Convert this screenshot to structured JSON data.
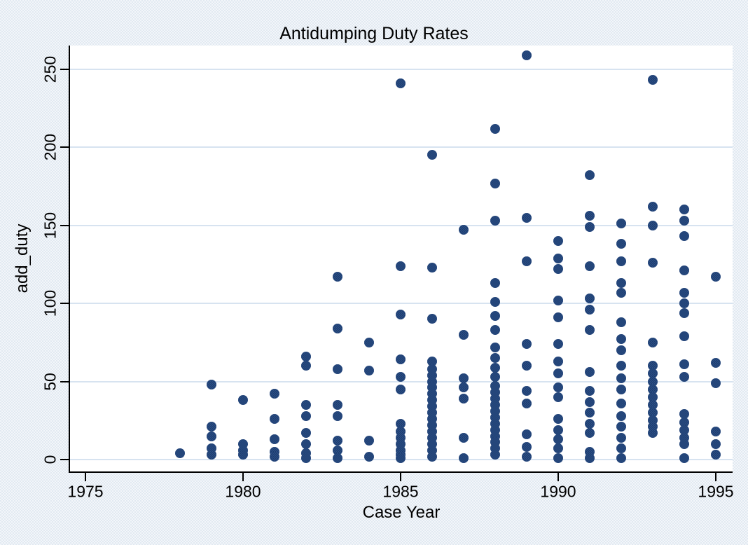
{
  "title": "Antidumping Duty Rates",
  "x_axis": {
    "label": "Case Year",
    "ticks": [
      1975,
      1980,
      1985,
      1990,
      1995
    ]
  },
  "y_axis": {
    "label": "add_duty",
    "ticks": [
      0,
      50,
      100,
      150,
      200,
      250
    ]
  },
  "colors": {
    "marker": "#24457a",
    "outer_background": "#eaf0f6",
    "plot_background": "#ffffff",
    "gridline": "#d7e3f0",
    "axis": "#000000"
  },
  "chart_data": {
    "type": "scatter",
    "title": "Antidumping Duty Rates",
    "xlabel": "Case Year",
    "ylabel": "add_duty",
    "xlim": [
      1974.5,
      1995.55
    ],
    "ylim": [
      0,
      262
    ],
    "grid": true,
    "legend": "none",
    "marker_shape": "filled-circle",
    "points": [
      {
        "year": 1978,
        "duties": [
          4
        ]
      },
      {
        "year": 1979,
        "duties": [
          48,
          21,
          15,
          7,
          3
        ]
      },
      {
        "year": 1980,
        "duties": [
          38,
          10,
          6,
          3
        ]
      },
      {
        "year": 1981,
        "duties": [
          42,
          26,
          13,
          5,
          2
        ]
      },
      {
        "year": 1982,
        "duties": [
          66,
          60,
          35,
          28,
          17,
          10,
          4,
          1
        ]
      },
      {
        "year": 1983,
        "duties": [
          117,
          84,
          58,
          35,
          28,
          12,
          6,
          1
        ]
      },
      {
        "year": 1984,
        "duties": [
          75,
          57,
          12,
          2
        ]
      },
      {
        "year": 1985,
        "duties": [
          241,
          124,
          93,
          64,
          53,
          45,
          23,
          18,
          14,
          10,
          6,
          3,
          1
        ]
      },
      {
        "year": 1986,
        "duties": [
          195,
          123,
          90,
          63,
          58,
          54,
          50,
          46,
          42,
          38,
          34,
          30,
          26,
          22,
          18,
          14,
          10,
          6,
          2
        ]
      },
      {
        "year": 1987,
        "duties": [
          147,
          80,
          52,
          46,
          39,
          14,
          1
        ]
      },
      {
        "year": 1988,
        "duties": [
          212,
          177,
          153,
          113,
          101,
          92,
          83,
          72,
          65,
          59,
          53,
          47,
          43,
          39,
          35,
          31,
          27,
          23,
          19,
          15,
          11,
          7,
          3
        ]
      },
      {
        "year": 1989,
        "duties": [
          259,
          155,
          127,
          74,
          60,
          44,
          36,
          16,
          8,
          2
        ]
      },
      {
        "year": 1990,
        "duties": [
          140,
          129,
          122,
          102,
          91,
          74,
          63,
          55,
          46,
          40,
          26,
          19,
          13,
          7,
          1
        ]
      },
      {
        "year": 1991,
        "duties": [
          182,
          156,
          149,
          124,
          103,
          96,
          83,
          56,
          44,
          37,
          30,
          23,
          17,
          5,
          1
        ]
      },
      {
        "year": 1992,
        "duties": [
          151,
          138,
          127,
          113,
          107,
          88,
          77,
          70,
          60,
          52,
          45,
          36,
          28,
          21,
          14,
          7,
          1
        ]
      },
      {
        "year": 1993,
        "duties": [
          243,
          162,
          150,
          126,
          75,
          60,
          55,
          50,
          45,
          40,
          35,
          30,
          25,
          21,
          17
        ]
      },
      {
        "year": 1994,
        "duties": [
          160,
          153,
          143,
          121,
          107,
          100,
          94,
          79,
          61,
          53,
          29,
          24,
          19,
          14,
          10,
          1
        ]
      },
      {
        "year": 1995,
        "duties": [
          117,
          62,
          49,
          18,
          10,
          3
        ]
      }
    ]
  }
}
